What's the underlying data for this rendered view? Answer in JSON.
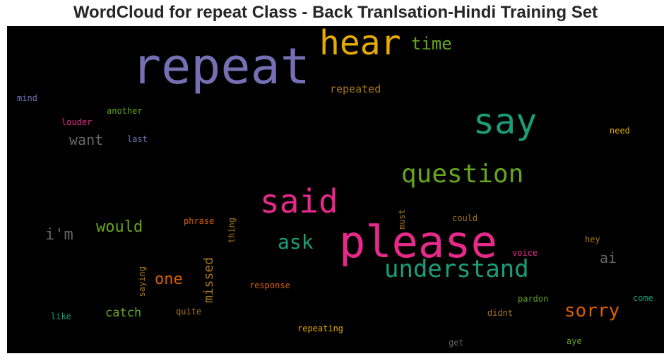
{
  "chart_data": {
    "type": "wordcloud",
    "title": "WordCloud for repeat Class - Back Tranlsation-Hindi Training Set",
    "background": "#000000",
    "words": [
      {
        "text": "repeat",
        "color": "#7570b3"
      },
      {
        "text": "please",
        "color": "#e7298a"
      },
      {
        "text": "hear",
        "color": "#e6ab02"
      },
      {
        "text": "say",
        "color": "#1b9e77"
      },
      {
        "text": "said",
        "color": "#e7298a"
      },
      {
        "text": "question",
        "color": "#66a61e"
      },
      {
        "text": "understand",
        "color": "#1b9e77"
      },
      {
        "text": "time",
        "color": "#66a61e"
      },
      {
        "text": "ask",
        "color": "#1b9e77"
      },
      {
        "text": "sorry",
        "color": "#d95f02"
      },
      {
        "text": "would",
        "color": "#66a61e"
      },
      {
        "text": "i'm",
        "color": "#666666"
      },
      {
        "text": "one",
        "color": "#d95f02"
      },
      {
        "text": "want",
        "color": "#666666"
      },
      {
        "text": "ai",
        "color": "#666666"
      },
      {
        "text": "missed",
        "color": "#a6761d"
      },
      {
        "text": "catch",
        "color": "#66a61e"
      },
      {
        "text": "repeated",
        "color": "#a6761d"
      },
      {
        "text": "another",
        "color": "#66a61e"
      },
      {
        "text": "louder",
        "color": "#e7298a"
      },
      {
        "text": "mind",
        "color": "#7570b3"
      },
      {
        "text": "last",
        "color": "#7570b3"
      },
      {
        "text": "need",
        "color": "#e6ab02"
      },
      {
        "text": "phrase",
        "color": "#d95f02"
      },
      {
        "text": "thing",
        "color": "#a6761d"
      },
      {
        "text": "must",
        "color": "#a6761d"
      },
      {
        "text": "could",
        "color": "#a6761d"
      },
      {
        "text": "hey",
        "color": "#a6761d"
      },
      {
        "text": "voice",
        "color": "#e7298a"
      },
      {
        "text": "saying",
        "color": "#a6761d"
      },
      {
        "text": "response",
        "color": "#d95f02"
      },
      {
        "text": "pardon",
        "color": "#66a61e"
      },
      {
        "text": "come",
        "color": "#1b9e77"
      },
      {
        "text": "quite",
        "color": "#a6761d"
      },
      {
        "text": "didnt",
        "color": "#a6761d"
      },
      {
        "text": "like",
        "color": "#1b9e77"
      },
      {
        "text": "repeating",
        "color": "#e6ab02"
      },
      {
        "text": "get",
        "color": "#666666"
      },
      {
        "text": "aye",
        "color": "#66a61e"
      }
    ]
  }
}
